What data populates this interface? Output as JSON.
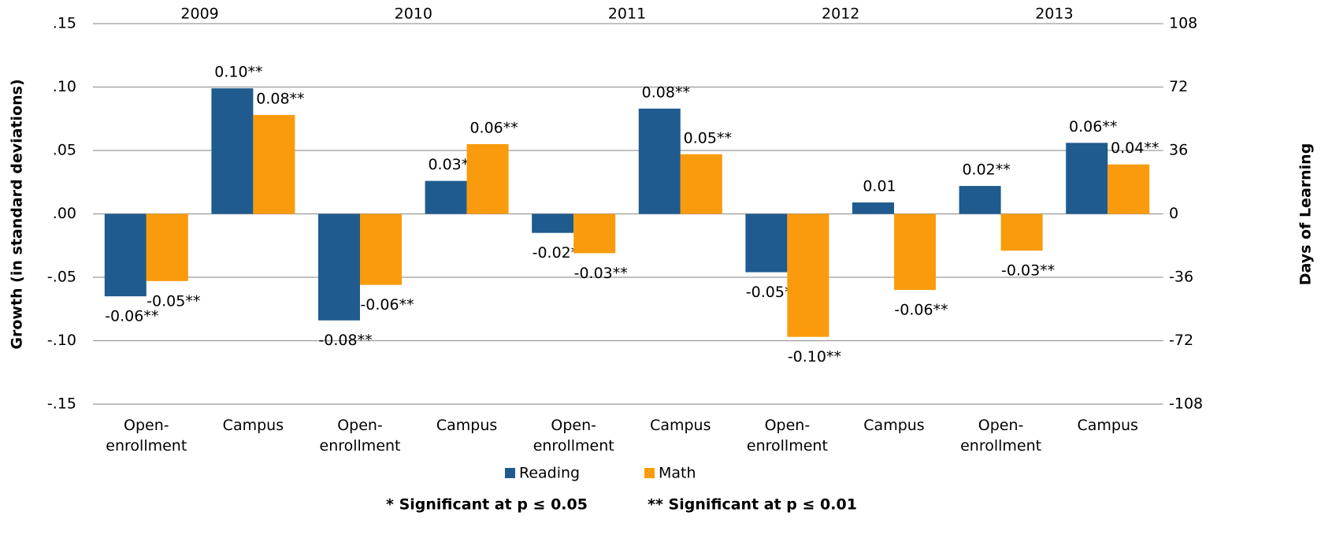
{
  "chart_data": {
    "type": "bar",
    "ylabel": "Growth (in standard deviations)",
    "y2label": "Days of Learning",
    "groups": [
      "2009",
      "2010",
      "2011",
      "2012",
      "2013"
    ],
    "categories": [
      "Open-enrollment",
      "Campus",
      "Open-enrollment",
      "Campus",
      "Open-enrollment",
      "Campus",
      "Open-enrollment",
      "Campus",
      "Open-enrollment",
      "Campus"
    ],
    "series": [
      {
        "name": "Reading",
        "color": "#1f5b8e",
        "values": [
          -0.065,
          0.099,
          -0.084,
          0.026,
          -0.015,
          0.083,
          -0.046,
          0.009,
          0.022,
          0.056
        ],
        "value_labels": [
          "-0.06**",
          "0.10**",
          "-0.08**",
          "0.03**",
          "-0.02**",
          "0.08**",
          "-0.05**",
          "0.01",
          "0.02**",
          "0.06**"
        ]
      },
      {
        "name": "Math",
        "color": "#f99b0c",
        "values": [
          -0.053,
          0.078,
          -0.056,
          0.055,
          -0.031,
          0.047,
          -0.097,
          -0.06,
          -0.029,
          0.039
        ],
        "value_labels": [
          "-0.05**",
          "0.08**",
          "-0.06**",
          "0.06**",
          "-0.03**",
          "0.05**",
          "-0.10**",
          "-0.06**",
          "-0.03**",
          "0.04**"
        ]
      }
    ],
    "ylim": [
      -0.15,
      0.15
    ],
    "yticks": [
      {
        "value": -0.15,
        "label": "-.15"
      },
      {
        "value": -0.1,
        "label": "-.10"
      },
      {
        "value": -0.05,
        "label": "-.05"
      },
      {
        "value": 0,
        "label": ".00"
      },
      {
        "value": 0.05,
        "label": ".05"
      },
      {
        "value": 0.1,
        "label": ".10"
      },
      {
        "value": 0.15,
        "label": ".15"
      }
    ],
    "y2lim": [
      -108,
      108
    ],
    "y2ticks": [
      -108,
      -72,
      -36,
      0,
      36,
      72,
      108
    ],
    "grid": true,
    "legend": "bottom",
    "notes": [
      "* Significant at p ≤ 0.05",
      "** Significant at p ≤ 0.01"
    ]
  }
}
